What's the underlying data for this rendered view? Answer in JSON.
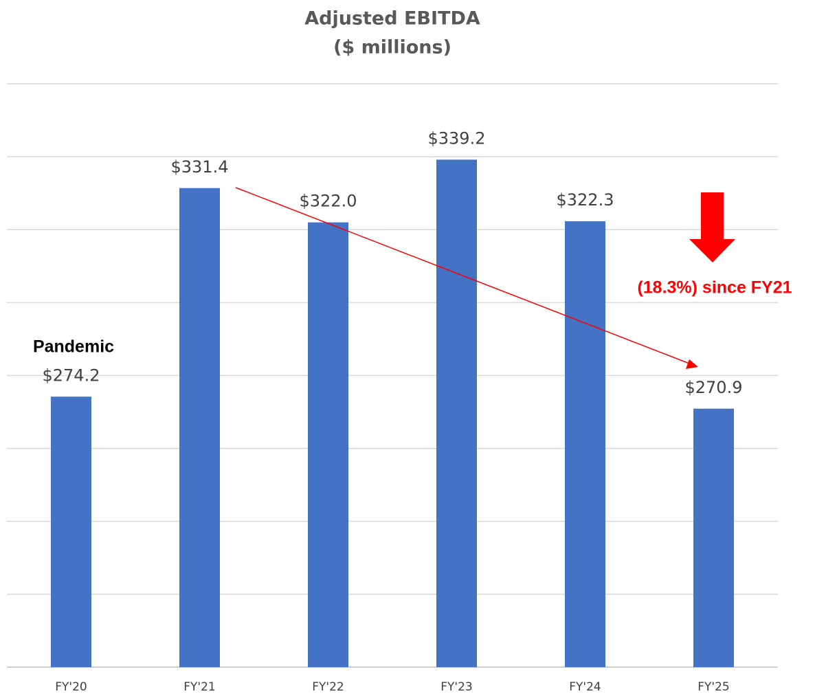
{
  "chart_data": {
    "type": "bar",
    "title": "Adjusted EBITDA",
    "subtitle": "($ millions)",
    "categories": [
      "FY'20",
      "FY'21",
      "FY'22",
      "FY'23",
      "FY'24",
      "FY'25"
    ],
    "values": [
      274.2,
      331.4,
      322.0,
      339.2,
      322.3,
      270.9
    ],
    "value_labels": [
      "$274.2",
      "$331.4",
      "$322.0",
      "$339.2",
      "$322.3",
      "$270.9"
    ],
    "color": "#4472c4",
    "ylim": [
      200,
      360
    ],
    "yticks": [
      200,
      220,
      240,
      260,
      280,
      300,
      320,
      340,
      360
    ],
    "grid": true,
    "annotations": [
      "Pandemic",
      "(18.3%) since FY21"
    ]
  }
}
